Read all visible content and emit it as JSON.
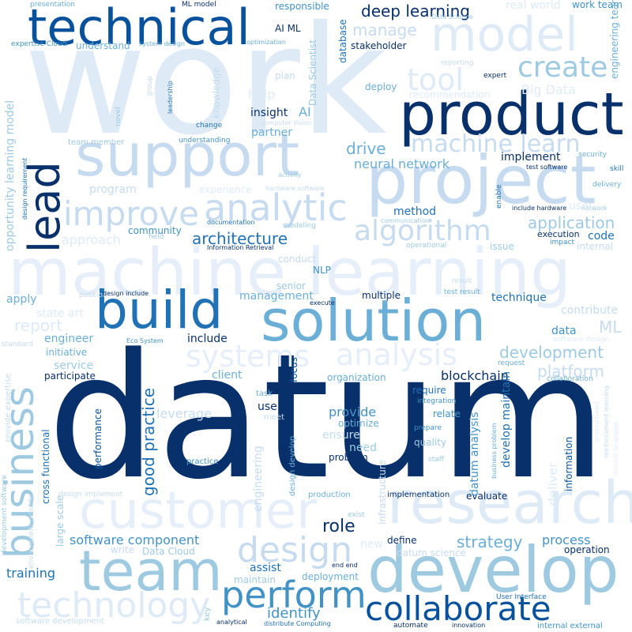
{
  "palette": {
    "background": "#ffffff",
    "darkest": "#08306b",
    "dark": "#08519c",
    "mid_dark": "#2171b5",
    "mid": "#4292c6",
    "light": "#6baed6",
    "lighter": "#9ecae1",
    "pale": "#c6dbef",
    "palest": "#deebf7"
  },
  "words": [
    {
      "text": "work",
      "color": "#deebf7"
    },
    {
      "text": "datum",
      "color": "#08306b"
    },
    {
      "text": "machine learning",
      "color": "#e6eff9"
    },
    {
      "text": "technical",
      "color": "#08519c"
    },
    {
      "text": "model",
      "color": "#deebf7"
    },
    {
      "text": "product",
      "color": "#08306b"
    },
    {
      "text": "project",
      "color": "#c6dbef"
    },
    {
      "text": "support",
      "color": "#c6dbef"
    },
    {
      "text": "solution",
      "color": "#6baed6"
    },
    {
      "text": "build",
      "color": "#2171b5"
    },
    {
      "text": "customer",
      "color": "#e6eff9"
    },
    {
      "text": "research",
      "color": "#deebf7"
    },
    {
      "text": "develop",
      "color": "#9ecae1"
    },
    {
      "text": "team",
      "color": "#9ecae1"
    },
    {
      "text": "collaborate",
      "color": "#08519c"
    },
    {
      "text": "perform",
      "color": "#4292c6"
    },
    {
      "text": "design",
      "color": "#c6dbef"
    },
    {
      "text": "technology",
      "color": "#deebf7"
    },
    {
      "text": "business",
      "color": "#9ecae1"
    },
    {
      "text": "lead",
      "color": "#08306b"
    },
    {
      "text": "improve",
      "color": "#c6dbef"
    },
    {
      "text": "analytic",
      "color": "#c6dbef"
    },
    {
      "text": "algorithm",
      "color": "#c6dbef"
    },
    {
      "text": "machine learn",
      "color": "#c6dbef"
    },
    {
      "text": "create",
      "color": "#9ecae1"
    },
    {
      "text": "tool",
      "color": "#deebf7"
    },
    {
      "text": "systems",
      "color": "#e6eff9"
    },
    {
      "text": "analysis",
      "color": "#e6eff9"
    },
    {
      "text": "deep learning",
      "color": "#08306b"
    },
    {
      "text": "architecture",
      "color": "#2171b5"
    },
    {
      "text": "application",
      "color": "#9ecae1"
    },
    {
      "text": "development",
      "color": "#9ecae1"
    },
    {
      "text": "platform",
      "color": "#c6dbef"
    },
    {
      "text": "good practice",
      "color": "#2171b5"
    },
    {
      "text": "role",
      "color": "#08306b"
    },
    {
      "text": "strategy",
      "color": "#6baed6"
    },
    {
      "text": "software component",
      "color": "#4292c6"
    },
    {
      "text": "process",
      "color": "#4292c6"
    },
    {
      "text": "identify",
      "color": "#4292c6"
    },
    {
      "text": "blockchain",
      "color": "#08306b"
    },
    {
      "text": "drive",
      "color": "#6baed6"
    },
    {
      "text": "neural network",
      "color": "#6baed6"
    },
    {
      "text": "implement",
      "color": "#08306b"
    },
    {
      "text": "method",
      "color": "#2171b5"
    },
    {
      "text": "code",
      "color": "#2171b5"
    },
    {
      "text": "manage",
      "color": "#c6dbef"
    },
    {
      "text": "report",
      "color": "#deebf7"
    },
    {
      "text": "training",
      "color": "#2171b5"
    },
    {
      "text": "assist",
      "color": "#2171b5"
    },
    {
      "text": "provide",
      "color": "#4292c6"
    },
    {
      "text": "technique",
      "color": "#2171b5"
    },
    {
      "text": "partner",
      "color": "#6baed6"
    },
    {
      "text": "insight",
      "color": "#08306b"
    },
    {
      "text": "AI",
      "color": "#6baed6"
    },
    {
      "text": "help",
      "color": "#deebf7"
    },
    {
      "text": "Big Data",
      "color": "#deebf7"
    },
    {
      "text": "program",
      "color": "#c6dbef"
    },
    {
      "text": "approach",
      "color": "#deebf7"
    },
    {
      "text": "opportunity learning model",
      "color": "#9ecae1"
    },
    {
      "text": "management",
      "color": "#6baed6"
    },
    {
      "text": "multiple",
      "color": "#08306b"
    },
    {
      "text": "apply",
      "color": "#6baed6"
    },
    {
      "text": "engineer",
      "color": "#6baed6"
    },
    {
      "text": "include",
      "color": "#08306b"
    },
    {
      "text": "client",
      "color": "#6baed6"
    },
    {
      "text": "initiative",
      "color": "#6baed6"
    },
    {
      "text": "service",
      "color": "#9ecae1"
    },
    {
      "text": "participate",
      "color": "#08306b"
    },
    {
      "text": "leverage",
      "color": "#c6dbef"
    },
    {
      "text": "organization",
      "color": "#6baed6"
    },
    {
      "text": "require",
      "color": "#2171b5"
    },
    {
      "text": "relate",
      "color": "#4292c6"
    },
    {
      "text": "ensure",
      "color": "#c6dbef"
    },
    {
      "text": "optimize",
      "color": "#6baed6"
    },
    {
      "text": "need",
      "color": "#9ecae1"
    },
    {
      "text": "problem",
      "color": "#08306b"
    },
    {
      "text": "quality",
      "color": "#9ecae1"
    },
    {
      "text": "evaluate",
      "color": "#08306b"
    },
    {
      "text": "implementation",
      "color": "#08306b"
    },
    {
      "text": "datum analysis",
      "color": "#4292c6"
    },
    {
      "text": "develop maintain",
      "color": "#2171b5"
    },
    {
      "text": "information",
      "color": "#08519c"
    },
    {
      "text": "deliver",
      "color": "#deebf7"
    },
    {
      "text": "datum science",
      "color": "#c6dbef"
    },
    {
      "text": "define",
      "color": "#08306b"
    },
    {
      "text": "operation",
      "color": "#08306b"
    },
    {
      "text": "deployment",
      "color": "#6baed6"
    },
    {
      "text": "maintain",
      "color": "#9ecae1"
    },
    {
      "text": "new",
      "color": "#deebf7"
    },
    {
      "text": "Data Cloud",
      "color": "#9ecae1"
    },
    {
      "text": "write",
      "color": "#c6dbef"
    },
    {
      "text": "large scale",
      "color": "#9ecae1"
    },
    {
      "text": "cross functional",
      "color": "#2171b5"
    },
    {
      "text": "performance",
      "color": "#08519c"
    },
    {
      "text": "practice",
      "color": "#4292c6"
    },
    {
      "text": "design develop",
      "color": "#6baed6"
    },
    {
      "text": "engineering",
      "color": "#c6dbef"
    },
    {
      "text": "focus",
      "color": "#08519c"
    },
    {
      "text": "use",
      "color": "#08306b"
    },
    {
      "text": "task",
      "color": "#6baed6"
    },
    {
      "text": "meet",
      "color": "#c6dbef"
    },
    {
      "text": "production",
      "color": "#6baed6"
    },
    {
      "text": "infrastructure",
      "color": "#c6dbef"
    },
    {
      "text": "integration",
      "color": "#4292c6"
    },
    {
      "text": "prepare",
      "color": "#4292c6"
    },
    {
      "text": "staff",
      "color": "#9ecae1"
    },
    {
      "text": "business problem",
      "color": "#6baed6"
    },
    {
      "text": "request",
      "color": "#6baed6"
    },
    {
      "text": "collaboration",
      "color": "#6baed6"
    },
    {
      "text": "software design",
      "color": "#deebf7"
    },
    {
      "text": "contribute",
      "color": "#c6dbef"
    },
    {
      "text": "data",
      "color": "#4292c6"
    },
    {
      "text": "ML",
      "color": "#c6dbef"
    },
    {
      "text": "execution",
      "color": "#08306b"
    },
    {
      "text": "impact",
      "color": "#4292c6"
    },
    {
      "text": "internal",
      "color": "#c6dbef"
    },
    {
      "text": "issue",
      "color": "#9ecae1"
    },
    {
      "text": "operational",
      "color": "#9ecae1"
    },
    {
      "text": "community",
      "color": "#4292c6"
    },
    {
      "text": "field",
      "color": "#9ecae1"
    },
    {
      "text": "Information Retrieval",
      "color": "#08306b"
    },
    {
      "text": "modeling",
      "color": "#9ecae1"
    },
    {
      "text": "conduct",
      "color": "#c6dbef"
    },
    {
      "text": "NLP",
      "color": "#4292c6"
    },
    {
      "text": "senior",
      "color": "#9ecae1"
    },
    {
      "text": "execute",
      "color": "#08306b"
    },
    {
      "text": "state art",
      "color": "#deebf7"
    },
    {
      "text": "position",
      "color": "#c6dbef"
    },
    {
      "text": "design include",
      "color": "#08306b"
    },
    {
      "text": "Eco System",
      "color": "#4292c6"
    },
    {
      "text": "standard",
      "color": "#c6dbef"
    },
    {
      "text": "presentation",
      "color": "#6baed6"
    },
    {
      "text": "ML model",
      "color": "#08306b"
    },
    {
      "text": "responsible",
      "color": "#4292c6"
    },
    {
      "text": "AI ML",
      "color": "#08306b"
    },
    {
      "text": "understand",
      "color": "#6baed6"
    },
    {
      "text": "system design",
      "color": "#6baed6"
    },
    {
      "text": "optimization",
      "color": "#6baed6"
    },
    {
      "text": "stakeholder",
      "color": "#08306b"
    },
    {
      "text": "expertise Cloud",
      "color": "#4292c6"
    },
    {
      "text": "database",
      "color": "#2171b5"
    },
    {
      "text": "Data Science",
      "color": "#9ecae1"
    },
    {
      "text": "real world",
      "color": "#deebf7"
    },
    {
      "text": "work team",
      "color": "#4292c6"
    },
    {
      "text": "plan",
      "color": "#c6dbef"
    },
    {
      "text": "Data Scientist",
      "color": "#9ecae1"
    },
    {
      "text": "deploy",
      "color": "#6baed6"
    },
    {
      "text": "recommendation",
      "color": "#deebf7"
    },
    {
      "text": "expert",
      "color": "#08306b"
    },
    {
      "text": "reporting",
      "color": "#c6dbef"
    },
    {
      "text": "engineering team",
      "color": "#6baed6"
    },
    {
      "text": "knowledge",
      "color": "#c6dbef"
    },
    {
      "text": "leadership",
      "color": "#2171b5"
    },
    {
      "text": "group",
      "color": "#c6dbef"
    },
    {
      "text": "novel",
      "color": "#9ecae1"
    },
    {
      "text": "change",
      "color": "#2171b5"
    },
    {
      "text": "computer vision",
      "color": "#c6dbef"
    },
    {
      "text": "understanding",
      "color": "#4292c6"
    },
    {
      "text": "team member",
      "color": "#9ecae1"
    },
    {
      "text": "activity",
      "color": "#9ecae1"
    },
    {
      "text": "hardware software",
      "color": "#c6dbef"
    },
    {
      "text": "experience",
      "color": "#deebf7"
    },
    {
      "text": "test software",
      "color": "#08306b"
    },
    {
      "text": "security",
      "color": "#6baed6"
    },
    {
      "text": "skill",
      "color": "#2171b5"
    },
    {
      "text": "delivery",
      "color": "#6baed6"
    },
    {
      "text": "enable",
      "color": "#2171b5"
    },
    {
      "text": "include hardware",
      "color": "#08306b"
    },
    {
      "text": "network",
      "color": "#9ecae1"
    },
    {
      "text": "communication",
      "color": "#9ecae1"
    },
    {
      "text": "design requirement",
      "color": "#2171b5"
    },
    {
      "text": "result",
      "color": "#c6dbef"
    },
    {
      "text": "test result",
      "color": "#6baed6"
    },
    {
      "text": "documentation",
      "color": "#2171b5"
    },
    {
      "text": "user",
      "color": "#deebf7"
    },
    {
      "text": "provide expertise",
      "color": "#c6dbef"
    },
    {
      "text": "development software",
      "color": "#9ecae1"
    },
    {
      "text": "environment provide",
      "color": "#c6dbef"
    },
    {
      "text": "design implement",
      "color": "#c6dbef"
    },
    {
      "text": "exist",
      "color": "#9ecae1"
    },
    {
      "text": "end end",
      "color": "#08306b"
    },
    {
      "text": "User Interface",
      "color": "#2171b5"
    },
    {
      "text": "innovation",
      "color": "#08306b"
    },
    {
      "text": "automate",
      "color": "#08306b"
    },
    {
      "text": "internal external",
      "color": "#4292c6"
    },
    {
      "text": "key",
      "color": "#9ecae1"
    },
    {
      "text": "analytical",
      "color": "#08306b"
    },
    {
      "text": "distribute Computing",
      "color": "#2171b5"
    },
    {
      "text": "software development",
      "color": "#c6dbef"
    },
    {
      "text": "reinforcement learning",
      "color": "#c6dbef"
    },
    {
      "text": "natural language",
      "color": "#deebf7"
    },
    {
      "text": "unstructured",
      "color": "#deebf7"
    }
  ]
}
